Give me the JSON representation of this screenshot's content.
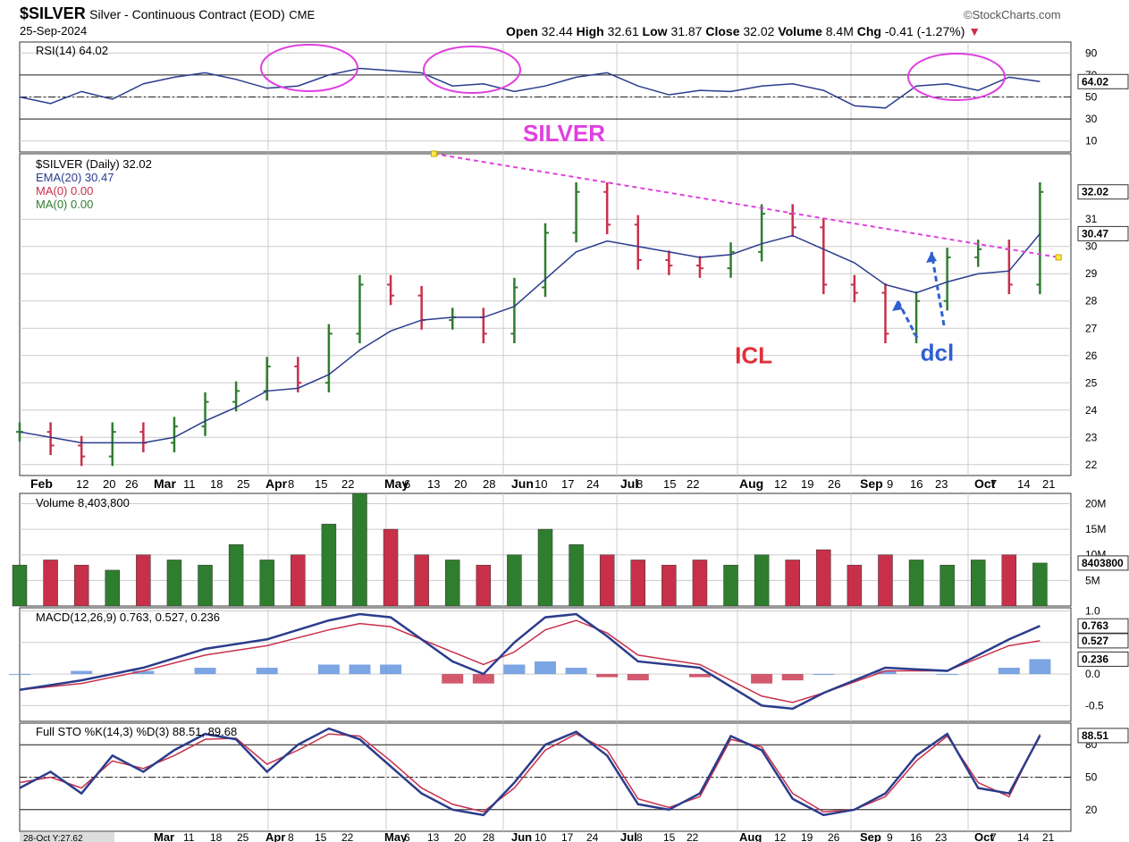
{
  "header": {
    "symbol": "$SILVER",
    "name": "Silver - Continuous Contract (EOD)",
    "exchange": "CME",
    "date": "25-Sep-2024",
    "brand": "©StockCharts.com",
    "ohlc": {
      "open_label": "Open",
      "open": "32.44",
      "high_label": "High",
      "high": "32.61",
      "low_label": "Low",
      "low": "31.87",
      "close_label": "Close",
      "close": "32.02",
      "volume_label": "Volume",
      "volume": "8.4M",
      "chg_label": "Chg",
      "chg": "-0.41 (-1.27%)"
    }
  },
  "colors": {
    "up": "#2f7d2f",
    "down": "#c8304a",
    "ema": "#2b3c8c",
    "macd_hist": "#5b8fdc",
    "annotation_magenta": "#e040e0",
    "annotation_red": "#e0303a",
    "annotation_blue": "#2f5fd0",
    "grid": "#cccccc",
    "border": "#333333"
  },
  "x_axis": {
    "month_labels": [
      "Feb",
      "Mar",
      "Apr",
      "May",
      "Jun",
      "Jul",
      "Aug",
      "Sep",
      "Oct"
    ],
    "tick_labels": [
      "12",
      "20",
      "26",
      "11",
      "18",
      "25",
      "8",
      "15",
      "22",
      "6",
      "13",
      "20",
      "28",
      "10",
      "17",
      "24",
      "8",
      "15",
      "22",
      "12",
      "19",
      "26",
      "9",
      "16",
      "23",
      "7",
      "14",
      "21"
    ],
    "bottom_status": "28-Oct Y:27.62"
  },
  "chart_data": [
    {
      "type": "line",
      "panel": "rsi",
      "title": "RSI(14) 64.02",
      "ylim": [
        0,
        100
      ],
      "y_ticks": [
        "90",
        "70",
        "50",
        "30",
        "10"
      ],
      "levels": [
        70,
        50,
        30
      ],
      "last_value_label": "64.02",
      "series": [
        {
          "name": "RSI(14)",
          "x": [
            0,
            5,
            10,
            15,
            20,
            25,
            30,
            35,
            40,
            45,
            50,
            55,
            60,
            65,
            70,
            75,
            80,
            85,
            90,
            95,
            100,
            105,
            110,
            115,
            120,
            125,
            130,
            135,
            140,
            145,
            150,
            155,
            160,
            165
          ],
          "values": [
            50,
            44,
            55,
            48,
            62,
            68,
            72,
            66,
            58,
            60,
            70,
            76,
            74,
            72,
            60,
            62,
            55,
            60,
            68,
            72,
            60,
            52,
            56,
            55,
            60,
            62,
            56,
            42,
            40,
            60,
            62,
            56,
            68,
            64
          ]
        }
      ]
    },
    {
      "type": "bar",
      "panel": "price",
      "title": "SILVER",
      "legend": [
        "$SILVER (Daily) 32.02",
        "EMA(20) 30.47",
        "MA(0) 0.00",
        "MA(0) 0.00"
      ],
      "ylim": [
        21.6,
        33.4
      ],
      "y_ticks": [
        "31",
        "30",
        "29",
        "28",
        "27",
        "26",
        "25",
        "24",
        "23",
        "22"
      ],
      "last_value_label": "32.02",
      "ema_label": "30.47",
      "annotations": [
        {
          "text": "ICL",
          "x": 120,
          "y": 26.1
        },
        {
          "text": "dcl",
          "x": 150,
          "y": 26.2
        }
      ],
      "trendline": {
        "x0": 67,
        "y0": 33.4,
        "x1": 168,
        "y1": 29.6
      },
      "series": [
        {
          "name": "$SILVER (Daily)",
          "x": [
            0,
            5,
            10,
            15,
            20,
            25,
            30,
            35,
            40,
            45,
            50,
            55,
            60,
            65,
            70,
            75,
            80,
            85,
            90,
            95,
            100,
            105,
            110,
            115,
            120,
            125,
            130,
            135,
            140,
            145,
            150,
            155,
            160,
            165
          ],
          "values": [
            23.2,
            22.7,
            22.3,
            23.2,
            22.8,
            23.4,
            24.3,
            24.7,
            25.6,
            25.0,
            26.8,
            28.6,
            28.2,
            27.3,
            27.4,
            26.8,
            28.5,
            30.5,
            32.0,
            30.8,
            29.5,
            29.3,
            29.2,
            29.8,
            31.2,
            30.7,
            28.6,
            28.3,
            26.8,
            28.0,
            29.6,
            29.9,
            28.6,
            32.0
          ]
        },
        {
          "name": "EMA(20)",
          "x": [
            0,
            5,
            10,
            15,
            20,
            25,
            30,
            35,
            40,
            45,
            50,
            55,
            60,
            65,
            70,
            75,
            80,
            85,
            90,
            95,
            100,
            105,
            110,
            115,
            120,
            125,
            130,
            135,
            140,
            145,
            150,
            155,
            160,
            165
          ],
          "values": [
            23.2,
            23.0,
            22.8,
            22.8,
            22.8,
            23.0,
            23.6,
            24.1,
            24.7,
            24.8,
            25.3,
            26.2,
            26.9,
            27.3,
            27.4,
            27.4,
            27.8,
            28.8,
            29.8,
            30.2,
            30.0,
            29.8,
            29.6,
            29.7,
            30.1,
            30.4,
            29.9,
            29.4,
            28.6,
            28.3,
            28.7,
            29.0,
            29.1,
            30.47
          ]
        }
      ]
    },
    {
      "type": "bar",
      "panel": "volume",
      "title": "Volume 8,403,800",
      "ylim": [
        0,
        22
      ],
      "y_ticks": [
        "20M",
        "15M",
        "10M",
        "5M"
      ],
      "last_value_label": "8403800",
      "series": [
        {
          "name": "Volume (M)",
          "x": [
            0,
            5,
            10,
            15,
            20,
            25,
            30,
            35,
            40,
            45,
            50,
            55,
            60,
            65,
            70,
            75,
            80,
            85,
            90,
            95,
            100,
            105,
            110,
            115,
            120,
            125,
            130,
            135,
            140,
            145,
            150,
            155,
            160,
            165
          ],
          "values": [
            8,
            9,
            8,
            7,
            10,
            9,
            8,
            12,
            9,
            10,
            16,
            22,
            15,
            10,
            9,
            8,
            10,
            15,
            12,
            10,
            9,
            8,
            9,
            8,
            10,
            9,
            11,
            8,
            10,
            9,
            8,
            9,
            10,
            8.4
          ]
        }
      ]
    },
    {
      "type": "line",
      "panel": "macd",
      "title": "MACD(12,26,9) 0.763, 0.527, 0.236",
      "ylim": [
        -0.75,
        1.05
      ],
      "y_ticks": [
        "1.0",
        "0.5",
        "0.0",
        "-0.5"
      ],
      "last_value_labels": [
        "0.763",
        "0.527",
        "0.236"
      ],
      "series": [
        {
          "name": "MACD",
          "x": [
            0,
            10,
            20,
            30,
            40,
            50,
            55,
            60,
            70,
            75,
            80,
            85,
            90,
            95,
            100,
            110,
            120,
            125,
            130,
            140,
            150,
            160,
            165
          ],
          "values": [
            -0.25,
            -0.1,
            0.1,
            0.4,
            0.55,
            0.85,
            0.95,
            0.9,
            0.2,
            0.0,
            0.5,
            0.9,
            0.95,
            0.6,
            0.2,
            0.1,
            -0.5,
            -0.55,
            -0.3,
            0.1,
            0.05,
            0.55,
            0.763
          ]
        },
        {
          "name": "Signal",
          "x": [
            0,
            10,
            20,
            30,
            40,
            50,
            55,
            60,
            70,
            75,
            80,
            85,
            90,
            95,
            100,
            110,
            120,
            125,
            130,
            140,
            150,
            160,
            165
          ],
          "values": [
            -0.25,
            -0.15,
            0.05,
            0.3,
            0.45,
            0.7,
            0.8,
            0.75,
            0.35,
            0.15,
            0.35,
            0.7,
            0.85,
            0.65,
            0.3,
            0.15,
            -0.35,
            -0.45,
            -0.3,
            0.05,
            0.05,
            0.45,
            0.527
          ]
        },
        {
          "name": "Histogram",
          "x": [
            0,
            10,
            20,
            30,
            40,
            50,
            55,
            60,
            70,
            75,
            80,
            85,
            90,
            95,
            100,
            110,
            120,
            125,
            130,
            140,
            150,
            160,
            165
          ],
          "values": [
            0.0,
            0.05,
            0.05,
            0.1,
            0.1,
            0.15,
            0.15,
            0.15,
            -0.15,
            -0.15,
            0.15,
            0.2,
            0.1,
            -0.05,
            -0.1,
            -0.05,
            -0.15,
            -0.1,
            0.0,
            0.05,
            0.0,
            0.1,
            0.236
          ]
        }
      ]
    },
    {
      "type": "line",
      "panel": "sto",
      "title": "Full STO %K(14,3) %D(3) 88.51, 89.68",
      "ylim": [
        0,
        100
      ],
      "y_ticks": [
        "80",
        "50",
        "20"
      ],
      "levels": [
        80,
        50,
        20
      ],
      "last_value_label": "88.51",
      "series": [
        {
          "name": "%K",
          "x": [
            0,
            5,
            10,
            15,
            20,
            25,
            30,
            35,
            40,
            45,
            50,
            55,
            60,
            65,
            70,
            75,
            80,
            85,
            90,
            95,
            100,
            105,
            110,
            115,
            120,
            125,
            130,
            135,
            140,
            145,
            150,
            155,
            160,
            165
          ],
          "values": [
            40,
            55,
            35,
            70,
            55,
            75,
            90,
            85,
            55,
            80,
            95,
            85,
            60,
            35,
            20,
            15,
            45,
            80,
            92,
            70,
            25,
            20,
            35,
            88,
            75,
            30,
            15,
            20,
            35,
            70,
            90,
            40,
            35,
            88.51
          ]
        },
        {
          "name": "%D",
          "x": [
            0,
            5,
            10,
            15,
            20,
            25,
            30,
            35,
            40,
            45,
            50,
            55,
            60,
            65,
            70,
            75,
            80,
            85,
            90,
            95,
            100,
            105,
            110,
            115,
            120,
            125,
            130,
            135,
            140,
            145,
            150,
            155,
            160,
            165
          ],
          "values": [
            45,
            50,
            40,
            65,
            58,
            70,
            85,
            86,
            62,
            75,
            90,
            88,
            65,
            40,
            25,
            18,
            40,
            75,
            90,
            75,
            30,
            22,
            32,
            85,
            78,
            35,
            18,
            20,
            32,
            65,
            88,
            45,
            32,
            89.68
          ]
        }
      ]
    }
  ]
}
